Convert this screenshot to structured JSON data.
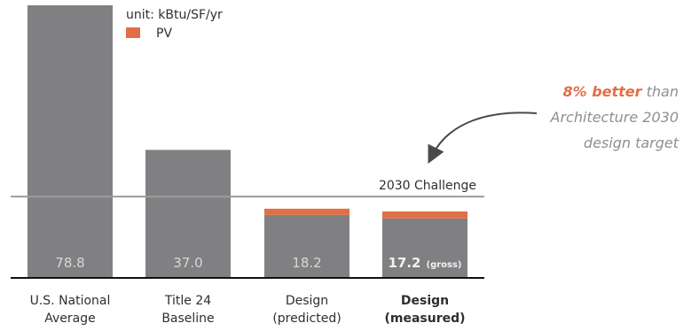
{
  "chart_data": {
    "type": "bar",
    "categories": [
      "U.S. National Average",
      "Title 24 Baseline",
      "Design (predicted)",
      "Design (measured)"
    ],
    "category_lines": [
      [
        "U.S. National",
        "Average"
      ],
      [
        "Title 24",
        "Baseline"
      ],
      [
        "Design",
        "(predicted)"
      ],
      [
        "Design",
        "(measured)"
      ]
    ],
    "series": [
      {
        "values": [
          78.8,
          37.0,
          18.2,
          17.2
        ]
      },
      {
        "name": "PV",
        "values": [
          0,
          0,
          1.8,
          2.0
        ]
      }
    ],
    "value_labels": [
      "78.8",
      "37.0",
      "18.2",
      "17.2"
    ],
    "value_suffixes": [
      "",
      "",
      "",
      "(gross)"
    ],
    "bold_categories": [
      false,
      false,
      false,
      true
    ],
    "unit": "unit: kBtu/SF/yr",
    "reference_line": {
      "label": "2030 Challenge",
      "value": 23.5
    },
    "annotation": {
      "highlight": "8% better",
      "rest": "than",
      "line2": "Architecture 2030",
      "line3": "design target"
    },
    "xlabel": "",
    "ylabel": "",
    "ylim": [
      0,
      78.8
    ],
    "grid": false,
    "legend": "top-left",
    "colors": {
      "bar": "#808083",
      "pv": "#e06f47",
      "reference_line": "#9c9c9c",
      "axis": "#111111",
      "text": "#2f2f2f",
      "accent": "#e06f47",
      "annotation_text": "#8f8f8f"
    }
  }
}
